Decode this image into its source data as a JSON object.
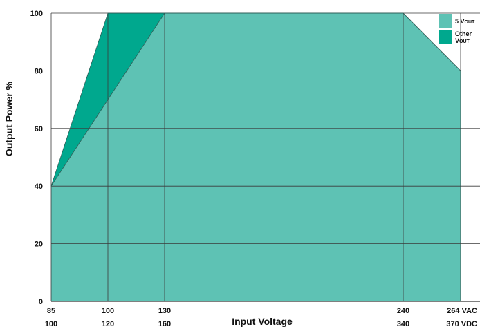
{
  "chart_data": {
    "type": "area",
    "xlabel": "Input Voltage",
    "ylabel": "Output Power %",
    "ylim": [
      0,
      100
    ],
    "xlim": [
      85,
      264
    ],
    "x_ticks": [
      {
        "value": 85,
        "vac": "85",
        "vdc": "100"
      },
      {
        "value": 100,
        "vac": "100",
        "vdc": "120"
      },
      {
        "value": 130,
        "vac": "130",
        "vdc": "160"
      },
      {
        "value": 240,
        "vac": "240",
        "vdc": "340"
      },
      {
        "value": 264,
        "vac": "264 VAC",
        "vdc": "370 VDC"
      }
    ],
    "y_ticks": [
      "0",
      "20",
      "40",
      "60",
      "80",
      "100"
    ],
    "grid": true,
    "legend_position": "top-right",
    "series": [
      {
        "name": "5 VOUT",
        "name_main": "5 V",
        "name_sub": "OUT",
        "color": "#5ec2b4",
        "x": [
          85,
          100,
          130,
          240,
          264,
          264,
          85
        ],
        "y": [
          40,
          70,
          100,
          100,
          80,
          0,
          0
        ]
      },
      {
        "name": "Other VOUT",
        "name_main": "Other",
        "name_line2_main": "V",
        "name_sub": "OUT",
        "color": "#00a88e",
        "x": [
          85,
          100,
          130,
          240,
          264,
          264,
          85
        ],
        "y": [
          40,
          100,
          100,
          100,
          80,
          0,
          0
        ]
      }
    ]
  }
}
